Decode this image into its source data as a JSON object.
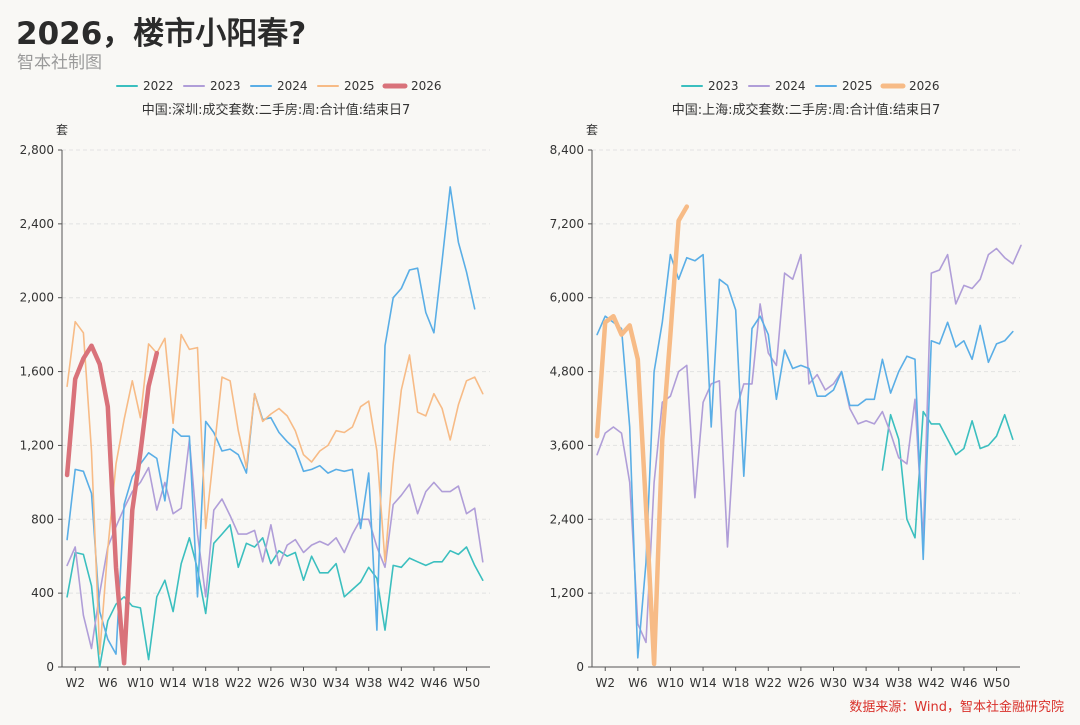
{
  "header": {
    "title": "2026，楼市小阳春?",
    "subtitle": "智本社制图"
  },
  "footer": {
    "source": "数据来源：Wind，智本社金融研究院"
  },
  "colors": {
    "2022": "#3bbfbf",
    "2023": "#b09ed8",
    "2024": "#5aaee6",
    "2025": "#f7bb86",
    "2026": "#d9727a"
  },
  "chart_data": [
    {
      "type": "line",
      "title": "中国:深圳:成交套数:二手房:周:合计值:结束日7",
      "ylabel": "套",
      "ylim": [
        0,
        2800
      ],
      "yticks": [
        "0",
        "400",
        "800",
        "1,200",
        "1,600",
        "2,000",
        "2,400",
        "2,800"
      ],
      "xticks": [
        "W2",
        "W6",
        "W10",
        "W14",
        "W18",
        "W22",
        "W26",
        "W30",
        "W34",
        "W38",
        "W42",
        "W46",
        "W50"
      ],
      "grid": true,
      "legend_position": "top",
      "series": [
        {
          "name": "2022",
          "color": "#3bbfbf",
          "width": 1.6,
          "values": [
            380,
            620,
            610,
            440,
            0,
            250,
            340,
            380,
            330,
            320,
            40,
            380,
            470,
            300,
            560,
            700,
            530,
            290,
            670,
            720,
            770,
            540,
            670,
            650,
            700,
            560,
            630,
            600,
            620,
            470,
            600,
            510,
            510,
            560,
            380,
            420,
            460,
            540,
            480,
            200,
            550,
            540,
            590,
            570,
            550,
            570,
            570,
            630,
            610,
            650,
            550,
            470
          ]
        },
        {
          "name": "2023",
          "color": "#b09ed8",
          "width": 1.6,
          "values": [
            550,
            650,
            280,
            100,
            400,
            650,
            760,
            860,
            950,
            1000,
            1080,
            850,
            1000,
            830,
            860,
            1230,
            720,
            380,
            850,
            910,
            820,
            720,
            720,
            740,
            570,
            770,
            550,
            660,
            690,
            620,
            660,
            680,
            660,
            700,
            620,
            720,
            800,
            800,
            650,
            540,
            880,
            930,
            990,
            830,
            950,
            1000,
            950,
            950,
            980,
            830,
            860,
            570
          ]
        },
        {
          "name": "2024",
          "color": "#5aaee6",
          "width": 1.6,
          "values": [
            690,
            1070,
            1060,
            940,
            300,
            150,
            70,
            880,
            1030,
            1100,
            1160,
            1130,
            900,
            1290,
            1250,
            1250,
            380,
            1330,
            1270,
            1170,
            1180,
            1150,
            1050,
            1480,
            1340,
            1350,
            1270,
            1220,
            1180,
            1060,
            1070,
            1090,
            1050,
            1070,
            1060,
            1070,
            750,
            1050,
            200,
            1740,
            2000,
            2050,
            2150,
            2160,
            1920,
            1810,
            2200,
            2600,
            2300,
            2140,
            1940
          ]
        },
        {
          "name": "2025",
          "color": "#f7bb86",
          "width": 1.6,
          "values": [
            1520,
            1870,
            1810,
            1170,
            70,
            640,
            1100,
            1340,
            1550,
            1350,
            1750,
            1700,
            1780,
            1320,
            1800,
            1720,
            1730,
            750,
            1160,
            1570,
            1550,
            1280,
            1080,
            1480,
            1330,
            1370,
            1400,
            1360,
            1280,
            1150,
            1110,
            1170,
            1200,
            1280,
            1270,
            1300,
            1410,
            1440,
            1170,
            570,
            1100,
            1500,
            1690,
            1380,
            1360,
            1480,
            1400,
            1230,
            1420,
            1550,
            1570,
            1480
          ]
        },
        {
          "name": "2026",
          "color": "#d9727a",
          "width": 4.5,
          "values": [
            1040,
            1560,
            1670,
            1740,
            1640,
            1410,
            540,
            20,
            850,
            1160,
            1520,
            1700
          ]
        }
      ]
    },
    {
      "type": "line",
      "title": "中国:上海:成交套数:二手房:周:合计值:结束日7",
      "ylabel": "套",
      "ylim": [
        0,
        8400
      ],
      "yticks": [
        "0",
        "1,200",
        "2,400",
        "3,600",
        "4,800",
        "6,000",
        "7,200",
        "8,400"
      ],
      "xticks": [
        "W2",
        "W6",
        "W10",
        "W14",
        "W18",
        "W22",
        "W26",
        "W30",
        "W34",
        "W38",
        "W42",
        "W46",
        "W50"
      ],
      "grid": true,
      "legend_position": "top",
      "series": [
        {
          "name": "2023",
          "color": "#3bbfbf",
          "width": 1.6,
          "start_week": 36,
          "values": [
            3200,
            4100,
            3700,
            2400,
            2100,
            4150,
            3950,
            3950,
            3700,
            3450,
            3550,
            4000,
            3550,
            3600,
            3750,
            4100,
            3700
          ]
        },
        {
          "name": "2024",
          "color": "#b09ed8",
          "width": 1.6,
          "values": [
            3450,
            3800,
            3900,
            3800,
            3000,
            700,
            400,
            3000,
            4300,
            4400,
            4800,
            4900,
            2750,
            4300,
            4600,
            4650,
            1950,
            4150,
            4600,
            4600,
            5900,
            5100,
            4900,
            6400,
            6300,
            6700,
            4600,
            4750,
            4500,
            4600,
            4800,
            4200,
            3950,
            4000,
            3950,
            4150,
            3800,
            3400,
            3300,
            4350,
            2050,
            6400,
            6450,
            6700,
            5900,
            6200,
            6150,
            6300,
            6700,
            6800,
            6650,
            6550,
            6850
          ]
        },
        {
          "name": "2025",
          "color": "#5aaee6",
          "width": 1.6,
          "values": [
            5400,
            5700,
            5600,
            5500,
            3900,
            150,
            1700,
            4800,
            5600,
            6700,
            6300,
            6650,
            6600,
            6700,
            3900,
            6300,
            6200,
            5800,
            3100,
            5500,
            5700,
            5400,
            4350,
            5150,
            4850,
            4900,
            4850,
            4400,
            4400,
            4500,
            4800,
            4250,
            4250,
            4350,
            4350,
            5000,
            4450,
            4800,
            5050,
            5000,
            1750,
            5300,
            5250,
            5600,
            5200,
            5300,
            5000,
            5550,
            4950,
            5250,
            5300,
            5450
          ]
        },
        {
          "name": "2026",
          "color": "#f7bb86",
          "width": 4.5,
          "values": [
            3750,
            5600,
            5700,
            5400,
            5550,
            5000,
            2600,
            50,
            3700,
            5400,
            7250,
            7480
          ]
        }
      ]
    }
  ]
}
